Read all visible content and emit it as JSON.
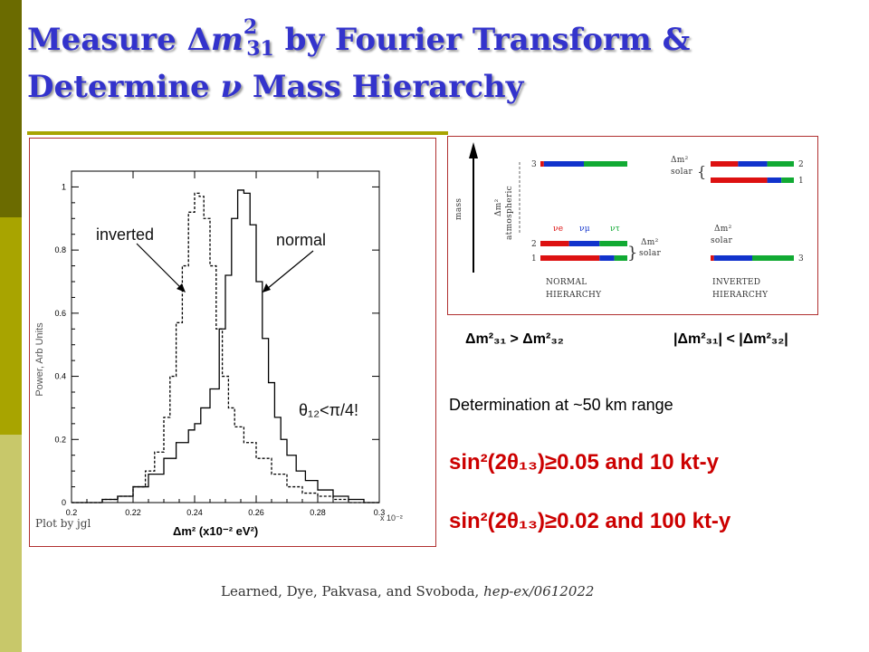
{
  "slide": {
    "title_line1_pre": "Measure Δ",
    "title_m": "m",
    "title_sup": "2",
    "title_sub": "31",
    "title_line1_post": " by Fourier Transform &",
    "title_line2_pre": "Determine ",
    "title_nu": "ν",
    "title_line2_post": " Mass Hierarchy",
    "band_colors": [
      "#6b6b00",
      "#a8a400",
      "#c8c86a"
    ]
  },
  "plot": {
    "credit": "Plot by jgl",
    "ylabel": "Power, Arb Units",
    "xlabel": "Δm² (x10⁻² eV²)",
    "x_scale_note": "x 10⁻²",
    "inverted_label": "inverted",
    "normal_label": "normal",
    "theta_note": "θ₁₂<π/4!",
    "line_color": "#000000"
  },
  "chart_data": {
    "type": "line",
    "title": "",
    "xlabel": "Δm² (x10⁻² eV²)",
    "ylabel": "Power, Arb Units",
    "xlim": [
      0.2,
      0.3
    ],
    "ylim": [
      0,
      1.05
    ],
    "x_ticks": [
      "0.2",
      "0.22",
      "0.24",
      "0.26",
      "0.28",
      "0.3"
    ],
    "y_ticks": [
      "0",
      "0.2",
      "0.4",
      "0.6",
      "0.8",
      "1"
    ],
    "series": [
      {
        "name": "inverted",
        "style": "dashed",
        "x": [
          0.2,
          0.205,
          0.21,
          0.215,
          0.22,
          0.224,
          0.227,
          0.23,
          0.232,
          0.234,
          0.236,
          0.238,
          0.24,
          0.2415,
          0.243,
          0.245,
          0.247,
          0.249,
          0.251,
          0.253,
          0.256,
          0.26,
          0.265,
          0.27,
          0.275,
          0.28,
          0.285,
          0.29,
          0.295,
          0.3
        ],
        "y": [
          0.0,
          0.0,
          0.01,
          0.02,
          0.05,
          0.1,
          0.16,
          0.27,
          0.4,
          0.57,
          0.75,
          0.92,
          0.98,
          0.97,
          0.9,
          0.75,
          0.55,
          0.4,
          0.3,
          0.24,
          0.19,
          0.14,
          0.09,
          0.05,
          0.03,
          0.02,
          0.01,
          0.0,
          0.0,
          0.0
        ]
      },
      {
        "name": "normal",
        "style": "solid",
        "x": [
          0.2,
          0.205,
          0.21,
          0.215,
          0.22,
          0.225,
          0.23,
          0.234,
          0.238,
          0.24,
          0.242,
          0.245,
          0.248,
          0.25,
          0.252,
          0.254,
          0.256,
          0.258,
          0.26,
          0.262,
          0.264,
          0.266,
          0.268,
          0.27,
          0.273,
          0.276,
          0.28,
          0.285,
          0.29,
          0.295,
          0.3
        ],
        "y": [
          0.0,
          0.0,
          0.01,
          0.02,
          0.05,
          0.09,
          0.14,
          0.19,
          0.23,
          0.25,
          0.3,
          0.36,
          0.55,
          0.72,
          0.9,
          0.99,
          0.98,
          0.88,
          0.7,
          0.52,
          0.38,
          0.27,
          0.2,
          0.15,
          0.1,
          0.07,
          0.04,
          0.02,
          0.01,
          0.0,
          0.0
        ]
      }
    ]
  },
  "hierarchy": {
    "mass_label": "mass",
    "dm2_atm_label": "Δm²",
    "atm_word": "atmospheric",
    "dm2_solar_label": "Δm²",
    "solar_word": "solar",
    "normal_title_1": "NORMAL",
    "normal_title_2": "HIERARCHY",
    "inverted_title_1": "INVERTED",
    "inverted_title_2": "HIERARCHY",
    "nu_e": "νe",
    "nu_mu": "νμ",
    "nu_tau": "ντ",
    "levels_normal": [
      "3",
      "2",
      "1"
    ],
    "levels_inverted": [
      "2",
      "1",
      "3"
    ],
    "colors": {
      "nu_e": "#dd1111",
      "nu_mu": "#1133cc",
      "nu_tau": "#11aa33"
    }
  },
  "relations": {
    "normal": "Δm²₃₁ > Δm²₃₂",
    "inverted": "|Δm²₃₁| < |Δm²₃₂|"
  },
  "text": {
    "determination": "Determination at ~50 km range",
    "sin1": "sin²(2θ₁₃)≥0.05 and 10 kt-y",
    "sin2": "sin²(2θ₁₃)≥0.02 and 100 kt-y",
    "citation_authors": "Learned, Dye, Pakvasa, and Svoboda, ",
    "citation_ref": "hep-ex/0612022"
  }
}
